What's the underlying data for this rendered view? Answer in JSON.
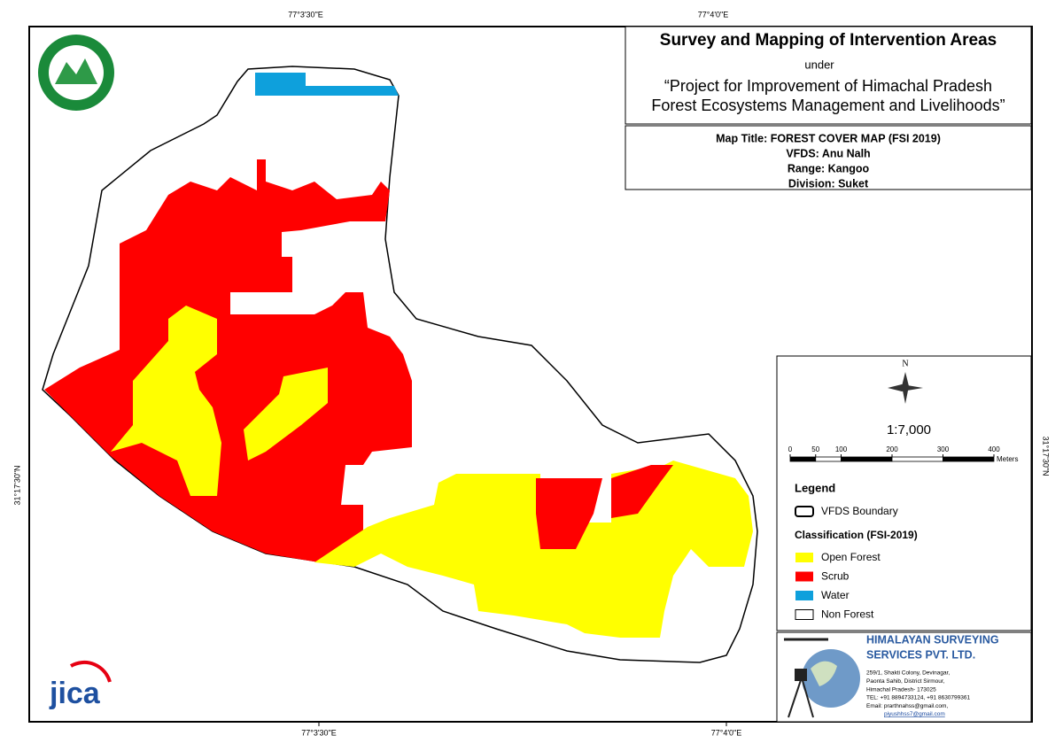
{
  "coordinates": {
    "top": [
      "77°3'30\"E",
      "77°4'0\"E"
    ],
    "bottom": [
      "77°3'30\"E",
      "77°4'0\"E"
    ],
    "left": "31°17'30\"N",
    "right": "31°17'30\"N"
  },
  "title_box": {
    "title": "Survey and Mapping of Intervention Areas",
    "under": "under",
    "project": [
      "“Project for Improvement of Himachal Pradesh",
      "Forest Ecosystems Management and Livelihoods”"
    ]
  },
  "map_info": [
    "Map Title: FOREST COVER MAP (FSI 2019)",
    "VFDS: Anu Nalh",
    "Range: Kangoo",
    "Division: Suket"
  ],
  "north": "N",
  "scale": "1:7,000",
  "scale_bar": {
    "ticks": [
      0,
      50,
      100,
      200,
      300,
      400
    ],
    "unit": "Meters"
  },
  "legend": {
    "title": "Legend",
    "boundary": "VFDS Boundary",
    "classification_title": "Classification (FSI-2019)",
    "classes": [
      {
        "name": "Open Forest",
        "color": "#ffff00"
      },
      {
        "name": "Scrub",
        "color": "#ff0000"
      },
      {
        "name": "Water",
        "color": "#0ea0dc"
      },
      {
        "name": "Non Forest",
        "color": "#ffffff"
      }
    ]
  },
  "company": {
    "name": [
      "HIMALAYAN SURVEYING",
      "SERVICES PVT. LTD."
    ],
    "address": [
      "259/1, Shakti Colony, Devinagar,",
      "Paonta Sahib, District Sirmour,",
      "Himachal Pradesh- 173025",
      "TEL: +91 8894733124, +91 8630799361",
      "Email: prarthnahss@gmail.com,",
      "piyushhss7@gmail.com"
    ]
  },
  "jica": "jica"
}
